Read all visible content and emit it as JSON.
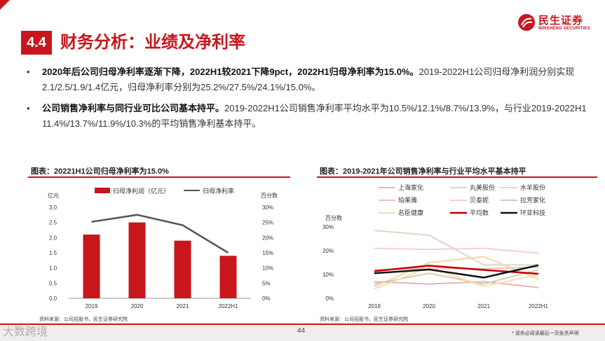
{
  "header": {
    "section_number": "4.4",
    "title": "财务分析：业绩及净利率",
    "logo_cn": "民生证券",
    "logo_en": "MINSHENG SECURITIES"
  },
  "bullets": [
    {
      "bold": "2020年后公司归母净利率逐渐下降，2022H1较2021下降9pct，2022H1归母净利率为15.0%。",
      "text": "2019-2022H1公司归母净利润分别实现2.1/2.5/1.9/1.4亿元，归母净利率分别为25.2%/27.5%/24.1%/15.0%。"
    },
    {
      "bold": "公司销售净利率与同行业可比公司基本持平。",
      "text": "2019-2022H1公司销售净利率平均水平为10.5%/12.1%/8.7%/13.9%，与行业2019-2022H1 11.4%/13.7%/11.9%/10.3%的平均销售净利基本持平。"
    }
  ],
  "left_chart": {
    "heading": "图表：20221H1公司归母净利率为15.0%",
    "source": "资料来源：公司招股书，民生证券研究院"
  },
  "right_chart": {
    "heading": "图表：2019-2021年公司销售净利率与行业平均水平基本持平",
    "source": "资料来源：公司招股书，民生证券研究院"
  },
  "chart_data": [
    {
      "type": "bar",
      "title": "20221H1公司归母净利率为15.0%",
      "categories": [
        "2019",
        "2020",
        "2021",
        "2022H1"
      ],
      "ylabel": "亿元",
      "y2label": "百分数",
      "ylim": [
        0,
        3.0
      ],
      "y2lim": [
        0,
        30
      ],
      "yticks": [
        "0.0",
        "0.5",
        "1.0",
        "1.5",
        "2.0",
        "2.5",
        "3.0"
      ],
      "y2ticks": [
        "0%",
        "5%",
        "10%",
        "15%",
        "20%",
        "25%",
        "30%"
      ],
      "series": [
        {
          "name": "归母净利润（亿元）",
          "kind": "bar",
          "color": "#c9161d",
          "values": [
            2.1,
            2.5,
            1.9,
            1.4
          ]
        },
        {
          "name": "归母净利率",
          "kind": "line",
          "axis": "right",
          "color": "#555555",
          "values": [
            25.2,
            27.5,
            24.1,
            15.0
          ]
        }
      ]
    },
    {
      "type": "line",
      "title": "2019-2021年公司销售净利率与行业平均水平基本持平",
      "categories": [
        "2019",
        "2020",
        "2021",
        "2022H1"
      ],
      "ylabel": "百分数",
      "ylim": [
        0,
        30
      ],
      "yticks": [
        "0%",
        "10%",
        "20%",
        "30%"
      ],
      "series": [
        {
          "name": "上海家化",
          "color": "#e8b4b4",
          "values": [
            7.0,
            6.0,
            7.0,
            4.5
          ]
        },
        {
          "name": "丸美股份",
          "color": "#d9d9c6",
          "values": [
            28.5,
            26.5,
            14.0,
            14.0
          ]
        },
        {
          "name": "水羊股份",
          "color": "#f7d4a8",
          "values": [
            5.0,
            15.0,
            17.5,
            8.0
          ]
        },
        {
          "name": "珀莱雅",
          "color": "#f0c0c4",
          "values": [
            12.0,
            12.5,
            12.5,
            13.0
          ]
        },
        {
          "name": "贝泰妮",
          "color": "#f5cfd6",
          "values": [
            21.0,
            20.5,
            21.0,
            19.0
          ]
        },
        {
          "name": "拉芳家化",
          "color": "#cfcfb8",
          "values": [
            6.0,
            10.5,
            6.0,
            12.0
          ]
        },
        {
          "name": "名臣健康",
          "color": "#f9dcaa",
          "values": [
            4.0,
            13.0,
            5.0,
            10.0
          ]
        },
        {
          "name": "平均数",
          "color": "#c00000",
          "values": [
            11.4,
            13.7,
            11.9,
            10.3
          ]
        },
        {
          "name": "环亚科技",
          "color": "#111111",
          "values": [
            10.5,
            12.1,
            8.7,
            13.9
          ]
        }
      ]
    }
  ],
  "footer": {
    "page_number": "44",
    "disclaimer": "* 请务必阅读最后一页免责声明",
    "watermark": "大数跨境"
  }
}
